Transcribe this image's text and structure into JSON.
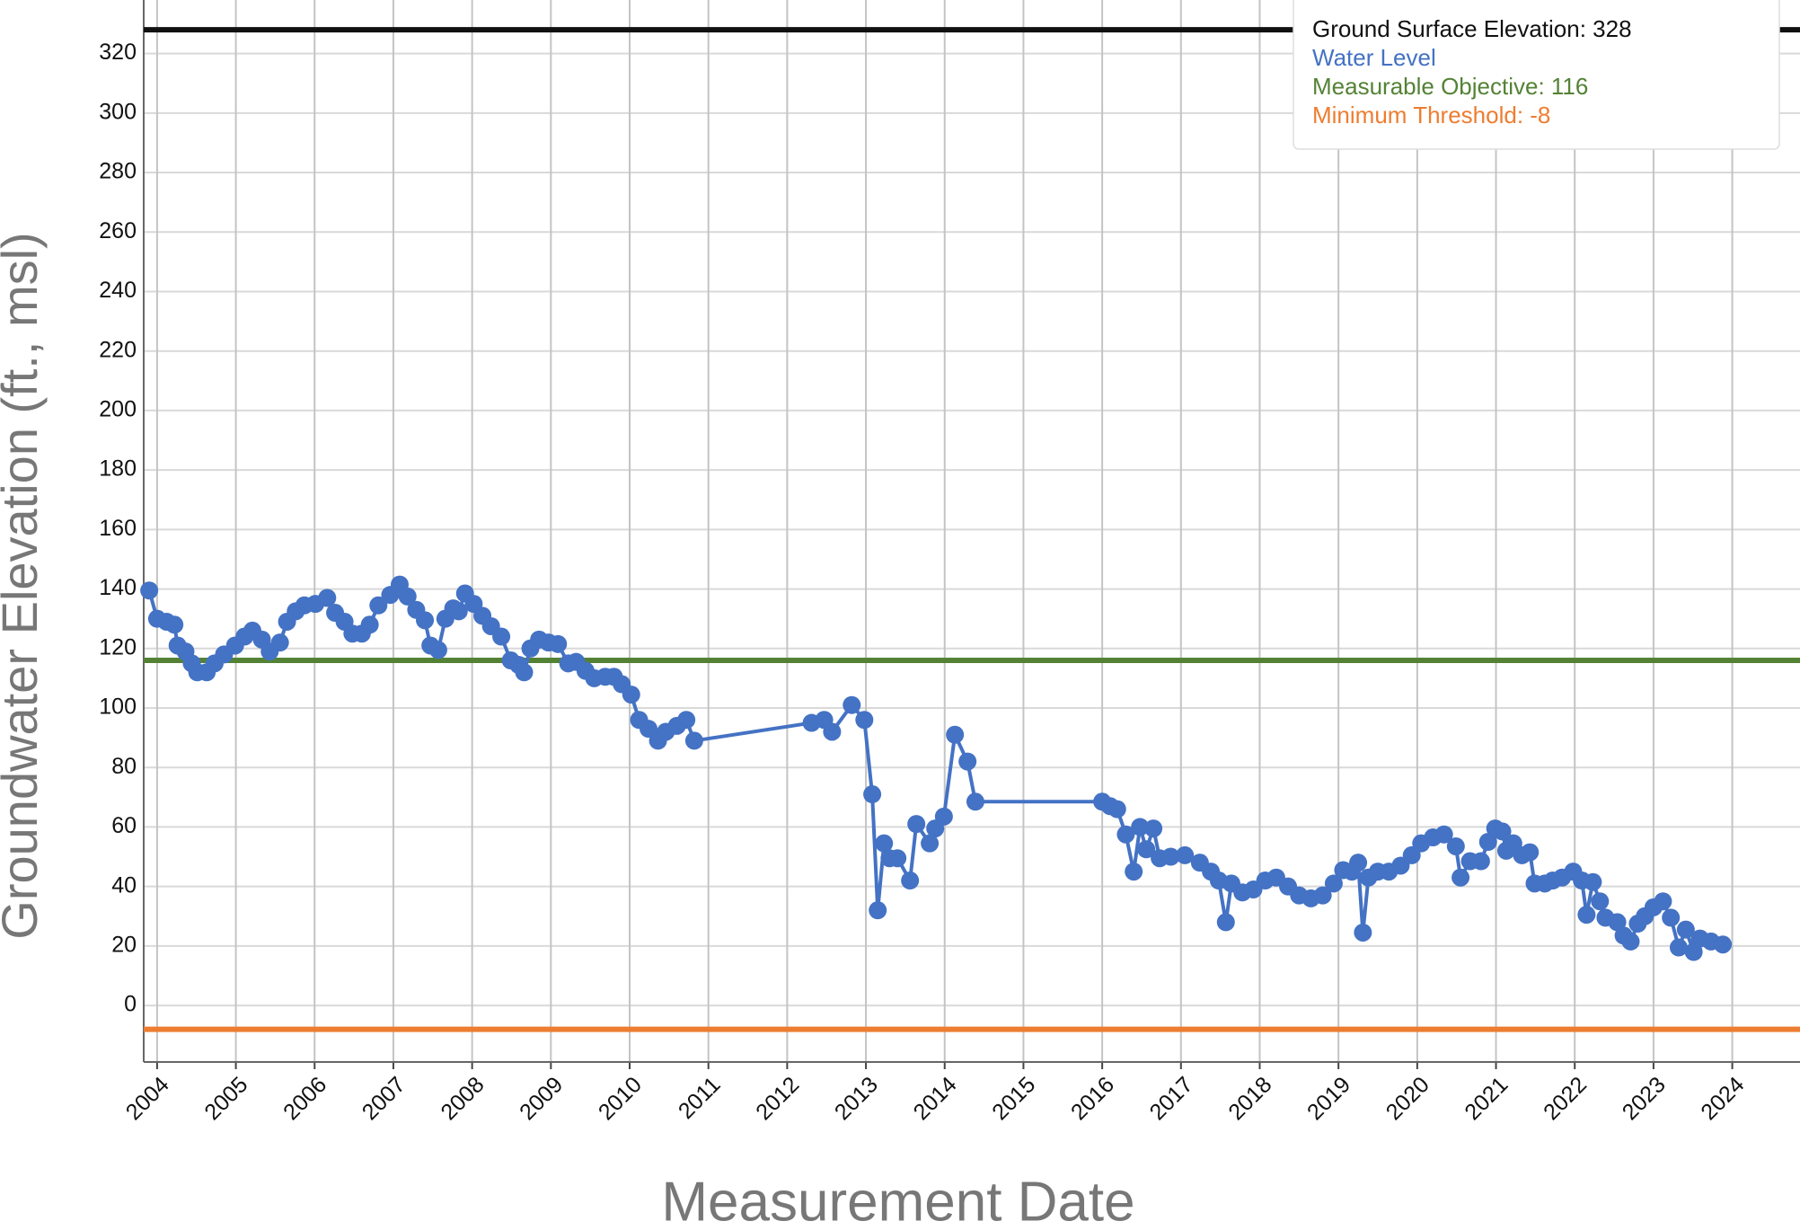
{
  "chart_data": {
    "type": "line",
    "x_label": "Measurement Date",
    "y_label": "Groundwater Elevation (ft., msl)",
    "xlim": [
      2003.83,
      2024.86
    ],
    "xticks": [
      2004,
      2005,
      2006,
      2007,
      2008,
      2009,
      2010,
      2011,
      2012,
      2013,
      2014,
      2015,
      2016,
      2017,
      2018,
      2019,
      2020,
      2021,
      2022,
      2023,
      2024
    ],
    "ylim": [
      -19,
      338
    ],
    "yticks": [
      0,
      20,
      40,
      60,
      80,
      100,
      120,
      140,
      160,
      180,
      200,
      220,
      240,
      260,
      280,
      300,
      320
    ],
    "grid": true,
    "legend": "upper right",
    "reference_lines": [
      {
        "name": "Ground Surface Elevation: 328",
        "color": "#111111",
        "value": 328
      },
      {
        "name": "Measurable Objective: 116",
        "color": "#548235",
        "value": 116
      },
      {
        "name": "Minimum Threshold: -8",
        "color": "#ed7d31",
        "value": -8
      }
    ],
    "series": [
      {
        "name": "Water Level",
        "color": "#4472c4",
        "x": [
          2003.9,
          2004.0,
          2004.12,
          2004.22,
          2004.26,
          2004.36,
          2004.44,
          2004.51,
          2004.63,
          2004.73,
          2004.85,
          2004.99,
          2005.11,
          2005.21,
          2005.33,
          2005.43,
          2005.56,
          2005.65,
          2005.76,
          2005.87,
          2006.01,
          2006.16,
          2006.26,
          2006.38,
          2006.48,
          2006.6,
          2006.7,
          2006.81,
          2006.96,
          2007.08,
          2007.18,
          2007.29,
          2007.4,
          2007.47,
          2007.57,
          2007.66,
          2007.76,
          2007.83,
          2007.91,
          2008.02,
          2008.13,
          2008.24,
          2008.37,
          2008.49,
          2008.59,
          2008.66,
          2008.74,
          2008.85,
          2008.97,
          2009.09,
          2009.22,
          2009.32,
          2009.44,
          2009.55,
          2009.69,
          2009.8,
          2009.9,
          2010.02,
          2010.12,
          2010.24,
          2010.36,
          2010.46,
          2010.6,
          2010.72,
          2010.82,
          2012.31,
          2012.47,
          2012.57,
          2012.82,
          2012.98,
          2013.08,
          2013.15,
          2013.23,
          2013.3,
          2013.4,
          2013.56,
          2013.64,
          2013.81,
          2013.88,
          2013.99,
          2014.13,
          2014.29,
          2014.39,
          2016.0,
          2016.1,
          2016.19,
          2016.3,
          2016.4,
          2016.48,
          2016.56,
          2016.65,
          2016.73,
          2016.87,
          2017.05,
          2017.24,
          2017.38,
          2017.48,
          2017.57,
          2017.64,
          2017.78,
          2017.92,
          2018.07,
          2018.21,
          2018.36,
          2018.5,
          2018.65,
          2018.8,
          2018.94,
          2019.06,
          2019.17,
          2019.25,
          2019.31,
          2019.38,
          2019.5,
          2019.64,
          2019.79,
          2019.93,
          2020.05,
          2020.2,
          2020.34,
          2020.49,
          2020.55,
          2020.67,
          2020.81,
          2020.9,
          2020.99,
          2021.08,
          2021.13,
          2021.22,
          2021.33,
          2021.43,
          2021.49,
          2021.62,
          2021.72,
          2021.84,
          2021.98,
          2022.09,
          2022.15,
          2022.23,
          2022.32,
          2022.39,
          2022.54,
          2022.62,
          2022.71,
          2022.8,
          2022.89,
          2023.0,
          2023.12,
          2023.22,
          2023.32,
          2023.41,
          2023.51,
          2023.59,
          2023.73,
          2023.88
        ],
        "values": [
          139.5,
          130,
          129,
          128,
          121,
          119,
          115,
          112,
          112,
          115,
          118,
          121,
          124,
          126,
          123,
          119,
          122,
          129,
          132.5,
          134.5,
          135,
          137,
          132,
          129,
          125,
          125,
          128,
          134.5,
          138,
          141.5,
          137.5,
          133,
          129.5,
          121,
          119.5,
          130,
          133.5,
          132.5,
          138.5,
          135,
          131,
          127.5,
          124,
          116,
          114.5,
          112,
          120,
          123,
          122,
          121.5,
          115,
          115.5,
          112.5,
          110,
          110.5,
          110.5,
          108,
          104.5,
          96,
          93,
          89,
          92,
          94,
          96,
          89,
          95,
          96,
          92,
          101,
          96,
          71,
          32,
          54.5,
          49.5,
          49.5,
          42,
          61,
          54.5,
          59.5,
          63.5,
          91,
          82,
          68.5,
          68.5,
          67,
          66,
          57.5,
          45,
          60,
          52.5,
          59.5,
          49.5,
          50,
          50.5,
          48,
          45,
          42,
          28,
          41,
          38,
          39,
          42,
          43,
          40,
          37,
          36,
          37,
          41,
          45.5,
          45,
          48,
          24.5,
          43,
          45,
          45,
          47,
          50.5,
          54.5,
          56.5,
          57.5,
          53.5,
          43,
          48.5,
          48.5,
          55,
          59.5,
          58.5,
          52,
          54.5,
          50.5,
          51.5,
          41,
          41,
          42,
          43,
          45,
          42,
          30.5,
          41.5,
          35,
          29.5,
          28,
          23.5,
          21.5,
          27.5,
          30,
          33,
          35,
          29.5,
          19.5,
          25.5,
          18,
          22.5,
          21.5,
          20.5
        ]
      }
    ]
  }
}
